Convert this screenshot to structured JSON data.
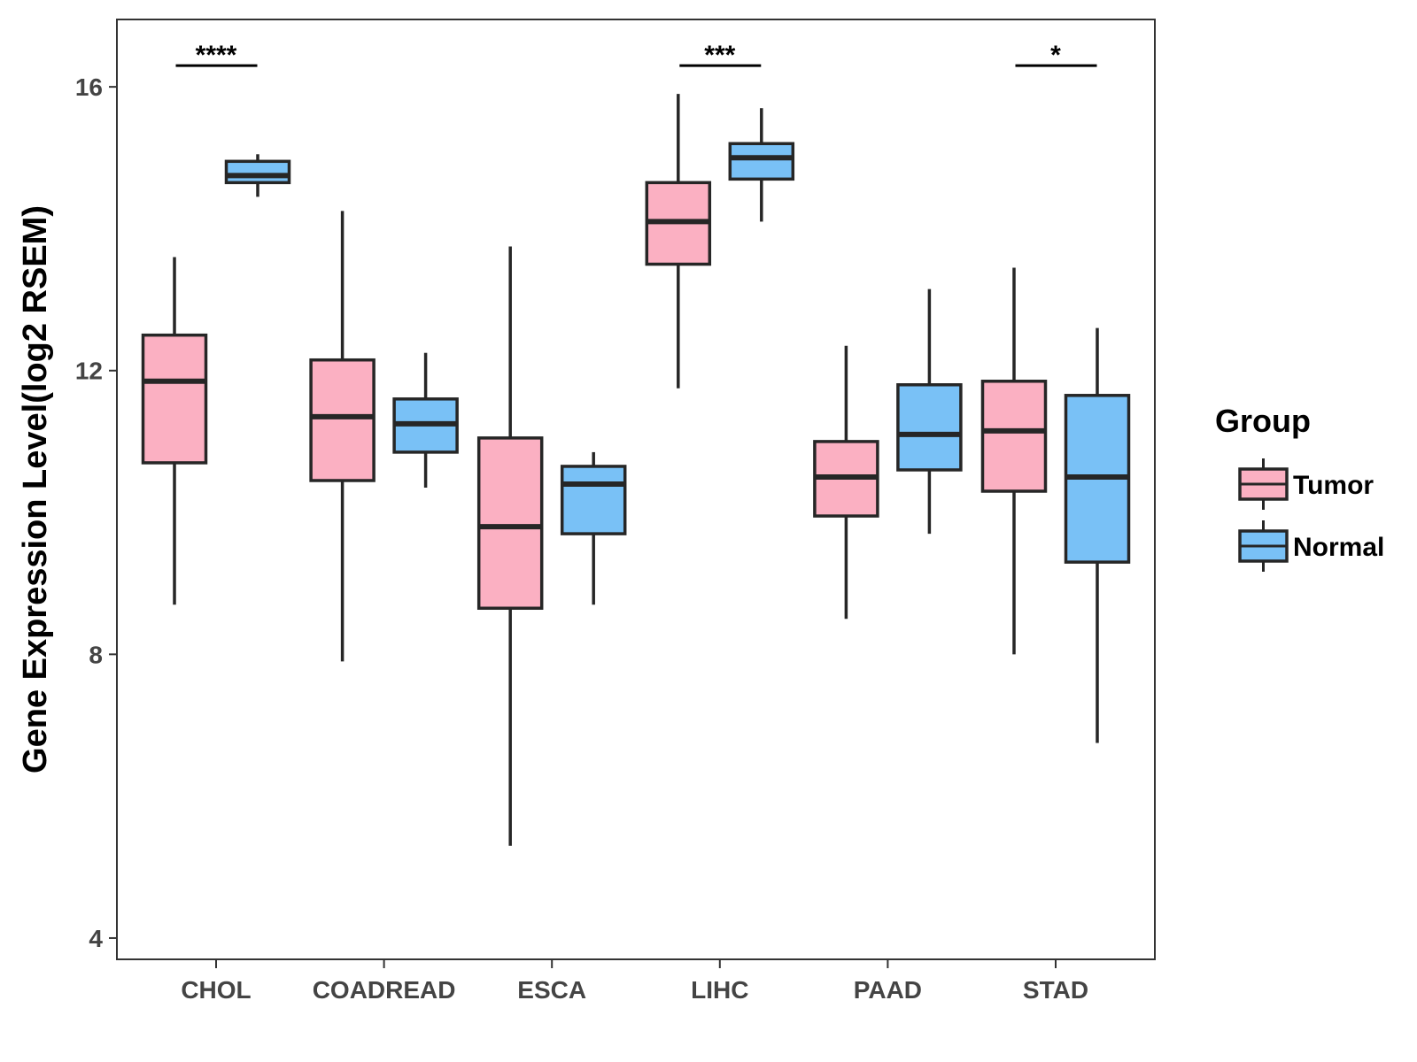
{
  "chart_data": {
    "type": "boxplot",
    "title": "",
    "xlabel": "",
    "ylabel": "Gene Expression Level(log2 RSEM)",
    "ylim": [
      3.7,
      16.95
    ],
    "yticks": [
      4,
      8,
      12,
      16
    ],
    "categories": [
      "CHOL",
      "COADREAD",
      "ESCA",
      "LIHC",
      "PAAD",
      "STAD"
    ],
    "series": [
      {
        "name": "Tumor",
        "color": "#FBB0C2",
        "boxes": [
          {
            "min": 8.7,
            "q1": 10.7,
            "median": 11.85,
            "q3": 12.5,
            "max": 13.6
          },
          {
            "min": 7.9,
            "q1": 10.45,
            "median": 11.35,
            "q3": 12.15,
            "max": 14.25
          },
          {
            "min": 5.3,
            "q1": 8.65,
            "median": 9.8,
            "q3": 11.05,
            "max": 13.75
          },
          {
            "min": 11.75,
            "q1": 13.5,
            "median": 14.1,
            "q3": 14.65,
            "max": 15.9
          },
          {
            "min": 8.5,
            "q1": 9.95,
            "median": 10.5,
            "q3": 11.0,
            "max": 12.35
          },
          {
            "min": 8.0,
            "q1": 10.3,
            "median": 11.15,
            "q3": 11.85,
            "max": 13.45
          }
        ]
      },
      {
        "name": "Normal",
        "color": "#79C1F6",
        "boxes": [
          {
            "min": 14.45,
            "q1": 14.65,
            "median": 14.75,
            "q3": 14.95,
            "max": 15.05
          },
          {
            "min": 10.35,
            "q1": 10.85,
            "median": 11.25,
            "q3": 11.6,
            "max": 12.25
          },
          {
            "min": 8.7,
            "q1": 9.7,
            "median": 10.4,
            "q3": 10.65,
            "max": 10.85
          },
          {
            "min": 14.1,
            "q1": 14.7,
            "median": 15.0,
            "q3": 15.2,
            "max": 15.7
          },
          {
            "min": 9.7,
            "q1": 10.6,
            "median": 11.1,
            "q3": 11.8,
            "max": 13.15
          },
          {
            "min": 6.75,
            "q1": 9.3,
            "median": 10.5,
            "q3": 11.65,
            "max": 12.6
          }
        ]
      }
    ],
    "significance": [
      {
        "category": "CHOL",
        "label": "****",
        "y": 16.3
      },
      {
        "category": "LIHC",
        "label": "***",
        "y": 16.3
      },
      {
        "category": "STAD",
        "label": "*",
        "y": 16.3
      }
    ],
    "legend": {
      "title": "Group",
      "position": "right"
    }
  }
}
